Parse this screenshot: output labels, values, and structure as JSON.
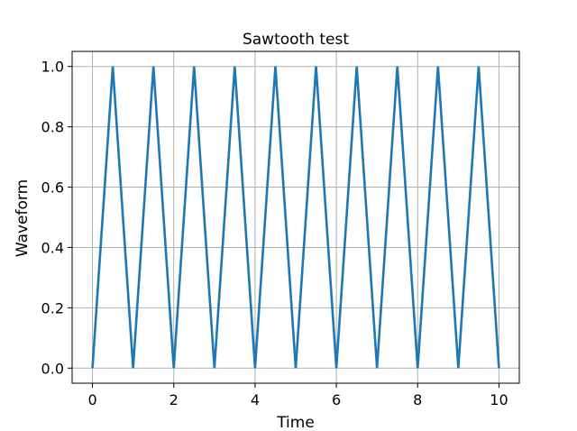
{
  "chart_data": {
    "type": "line",
    "title": "Sawtooth test",
    "xlabel": "Time",
    "ylabel": "Waveform",
    "xlim": [
      -0.5,
      10.5
    ],
    "ylim": [
      -0.05,
      1.05
    ],
    "xticks": [
      0,
      2,
      4,
      6,
      8,
      10
    ],
    "xtick_labels": [
      "0",
      "2",
      "4",
      "6",
      "8",
      "10"
    ],
    "yticks": [
      0.0,
      0.2,
      0.4,
      0.6,
      0.8,
      1.0
    ],
    "ytick_labels": [
      "0.0",
      "0.2",
      "0.4",
      "0.6",
      "0.8",
      "1.0"
    ],
    "grid": true,
    "colors": {
      "line": "#1f77b4",
      "grid": "#b0b0b0",
      "axes": "#000000"
    },
    "series": [
      {
        "x": [
          0,
          0.5,
          1,
          1.5,
          2,
          2.5,
          3,
          3.5,
          4,
          4.5,
          5,
          5.5,
          6,
          6.5,
          7,
          7.5,
          8,
          8.5,
          9,
          9.5,
          10
        ],
        "values": [
          0,
          1,
          0,
          1,
          0,
          1,
          0,
          1,
          0,
          1,
          0,
          1,
          0,
          1,
          0,
          1,
          0,
          1,
          0,
          1,
          0
        ]
      }
    ]
  }
}
